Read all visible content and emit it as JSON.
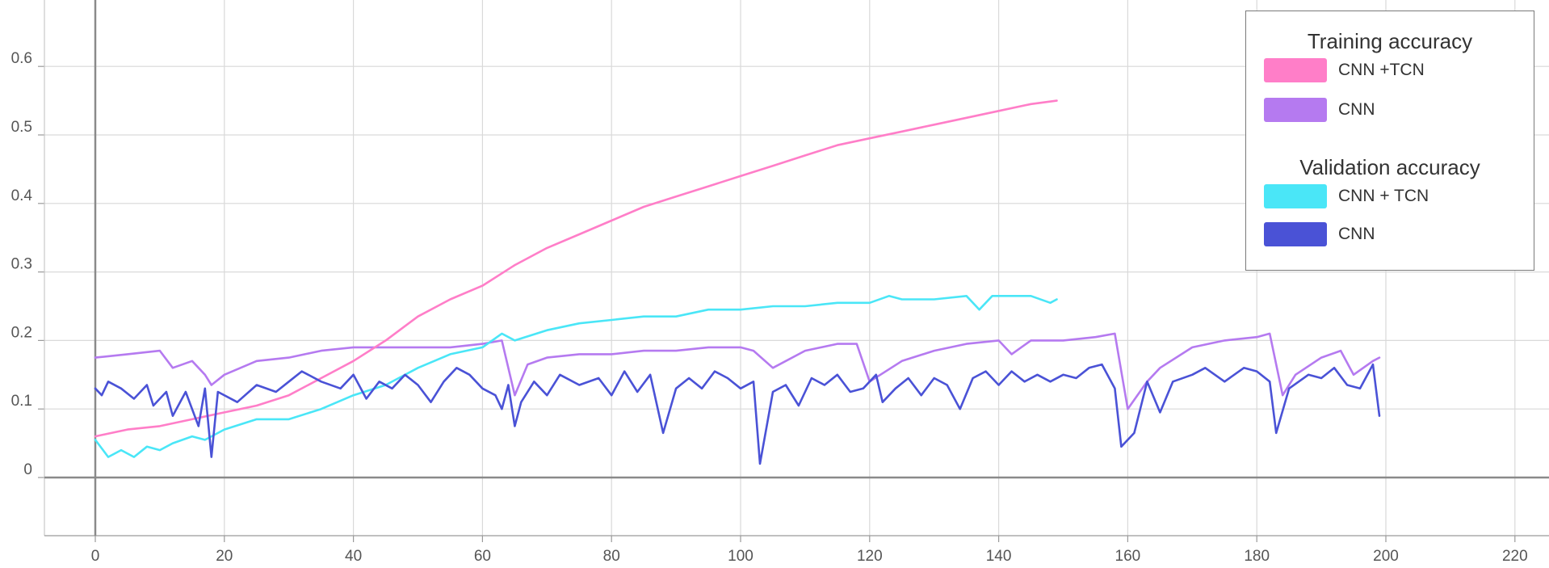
{
  "chart_data": {
    "type": "line",
    "title": "",
    "xlabel": "",
    "ylabel": "",
    "xlim": [
      -8,
      224
    ],
    "ylim": [
      -0.085,
      0.68
    ],
    "x_ticks": [
      0,
      20,
      40,
      60,
      80,
      100,
      120,
      140,
      160,
      180,
      200,
      220
    ],
    "y_ticks": [
      0,
      0.1,
      0.2,
      0.3,
      0.4,
      0.5,
      0.6
    ],
    "x_tick_labels": [
      "0",
      "20",
      "40",
      "60",
      "80",
      "100",
      "120",
      "140",
      "160",
      "180",
      "200",
      "220"
    ],
    "y_tick_labels": [
      "0",
      "0.1",
      "0.2",
      "0.3",
      "0.4",
      "0.5",
      "0.6"
    ],
    "grid": true,
    "legend_position": "top-right",
    "legend_groups": [
      {
        "title": "Training accuracy",
        "items": [
          {
            "label": "CNN +TCN",
            "series_index": 0
          },
          {
            "label": "CNN",
            "series_index": 1
          }
        ]
      },
      {
        "title": "Validation accuracy",
        "items": [
          {
            "label": "CNN + TCN",
            "series_index": 2
          },
          {
            "label": "CNN",
            "series_index": 3
          }
        ]
      }
    ],
    "series": [
      {
        "name": "CNN +TCN",
        "color": "#ff7ec8",
        "points": [
          [
            0,
            0.06
          ],
          [
            5,
            0.07
          ],
          [
            10,
            0.075
          ],
          [
            15,
            0.085
          ],
          [
            20,
            0.095
          ],
          [
            25,
            0.105
          ],
          [
            30,
            0.12
          ],
          [
            35,
            0.145
          ],
          [
            40,
            0.17
          ],
          [
            45,
            0.2
          ],
          [
            50,
            0.235
          ],
          [
            55,
            0.26
          ],
          [
            60,
            0.28
          ],
          [
            65,
            0.31
          ],
          [
            70,
            0.335
          ],
          [
            75,
            0.355
          ],
          [
            80,
            0.375
          ],
          [
            85,
            0.395
          ],
          [
            90,
            0.41
          ],
          [
            95,
            0.425
          ],
          [
            100,
            0.44
          ],
          [
            105,
            0.455
          ],
          [
            110,
            0.47
          ],
          [
            115,
            0.485
          ],
          [
            120,
            0.495
          ],
          [
            125,
            0.505
          ],
          [
            130,
            0.515
          ],
          [
            135,
            0.525
          ],
          [
            140,
            0.535
          ],
          [
            145,
            0.545
          ],
          [
            149,
            0.55
          ]
        ]
      },
      {
        "name": "CNN",
        "color": "#b57af0",
        "points": [
          [
            0,
            0.175
          ],
          [
            5,
            0.18
          ],
          [
            10,
            0.185
          ],
          [
            12,
            0.16
          ],
          [
            15,
            0.17
          ],
          [
            17,
            0.15
          ],
          [
            18,
            0.135
          ],
          [
            20,
            0.15
          ],
          [
            25,
            0.17
          ],
          [
            30,
            0.175
          ],
          [
            35,
            0.185
          ],
          [
            40,
            0.19
          ],
          [
            45,
            0.19
          ],
          [
            50,
            0.19
          ],
          [
            55,
            0.19
          ],
          [
            60,
            0.195
          ],
          [
            63,
            0.2
          ],
          [
            65,
            0.12
          ],
          [
            67,
            0.165
          ],
          [
            70,
            0.175
          ],
          [
            75,
            0.18
          ],
          [
            80,
            0.18
          ],
          [
            85,
            0.185
          ],
          [
            90,
            0.185
          ],
          [
            95,
            0.19
          ],
          [
            100,
            0.19
          ],
          [
            102,
            0.185
          ],
          [
            105,
            0.16
          ],
          [
            110,
            0.185
          ],
          [
            115,
            0.195
          ],
          [
            118,
            0.195
          ],
          [
            120,
            0.14
          ],
          [
            125,
            0.17
          ],
          [
            130,
            0.185
          ],
          [
            135,
            0.195
          ],
          [
            140,
            0.2
          ],
          [
            142,
            0.18
          ],
          [
            145,
            0.2
          ],
          [
            150,
            0.2
          ],
          [
            155,
            0.205
          ],
          [
            158,
            0.21
          ],
          [
            160,
            0.1
          ],
          [
            163,
            0.14
          ],
          [
            165,
            0.16
          ],
          [
            170,
            0.19
          ],
          [
            175,
            0.2
          ],
          [
            180,
            0.205
          ],
          [
            182,
            0.21
          ],
          [
            184,
            0.12
          ],
          [
            186,
            0.15
          ],
          [
            190,
            0.175
          ],
          [
            193,
            0.185
          ],
          [
            195,
            0.15
          ],
          [
            198,
            0.17
          ],
          [
            199,
            0.175
          ]
        ]
      },
      {
        "name": "CNN + TCN",
        "color": "#4ae6f7",
        "points": [
          [
            0,
            0.055
          ],
          [
            2,
            0.03
          ],
          [
            4,
            0.04
          ],
          [
            6,
            0.03
          ],
          [
            8,
            0.045
          ],
          [
            10,
            0.04
          ],
          [
            12,
            0.05
          ],
          [
            15,
            0.06
          ],
          [
            17,
            0.055
          ],
          [
            20,
            0.07
          ],
          [
            25,
            0.085
          ],
          [
            30,
            0.085
          ],
          [
            35,
            0.1
          ],
          [
            40,
            0.12
          ],
          [
            45,
            0.135
          ],
          [
            50,
            0.16
          ],
          [
            55,
            0.18
          ],
          [
            60,
            0.19
          ],
          [
            63,
            0.21
          ],
          [
            65,
            0.2
          ],
          [
            70,
            0.215
          ],
          [
            75,
            0.225
          ],
          [
            80,
            0.23
          ],
          [
            85,
            0.235
          ],
          [
            90,
            0.235
          ],
          [
            95,
            0.245
          ],
          [
            100,
            0.245
          ],
          [
            105,
            0.25
          ],
          [
            110,
            0.25
          ],
          [
            115,
            0.255
          ],
          [
            120,
            0.255
          ],
          [
            123,
            0.265
          ],
          [
            125,
            0.26
          ],
          [
            130,
            0.26
          ],
          [
            135,
            0.265
          ],
          [
            137,
            0.245
          ],
          [
            139,
            0.265
          ],
          [
            145,
            0.265
          ],
          [
            148,
            0.255
          ],
          [
            149,
            0.26
          ]
        ]
      },
      {
        "name": "CNN",
        "color": "#4a52d6",
        "points": [
          [
            0,
            0.13
          ],
          [
            1,
            0.12
          ],
          [
            2,
            0.14
          ],
          [
            4,
            0.13
          ],
          [
            6,
            0.115
          ],
          [
            8,
            0.135
          ],
          [
            9,
            0.105
          ],
          [
            11,
            0.125
          ],
          [
            12,
            0.09
          ],
          [
            14,
            0.125
          ],
          [
            16,
            0.075
          ],
          [
            17,
            0.13
          ],
          [
            18,
            0.03
          ],
          [
            19,
            0.125
          ],
          [
            22,
            0.11
          ],
          [
            25,
            0.135
          ],
          [
            28,
            0.125
          ],
          [
            30,
            0.14
          ],
          [
            32,
            0.155
          ],
          [
            35,
            0.14
          ],
          [
            38,
            0.13
          ],
          [
            40,
            0.15
          ],
          [
            42,
            0.115
          ],
          [
            44,
            0.14
          ],
          [
            46,
            0.13
          ],
          [
            48,
            0.15
          ],
          [
            50,
            0.135
          ],
          [
            52,
            0.11
          ],
          [
            54,
            0.14
          ],
          [
            56,
            0.16
          ],
          [
            58,
            0.15
          ],
          [
            60,
            0.13
          ],
          [
            62,
            0.12
          ],
          [
            63,
            0.1
          ],
          [
            64,
            0.135
          ],
          [
            65,
            0.075
          ],
          [
            66,
            0.11
          ],
          [
            68,
            0.14
          ],
          [
            70,
            0.12
          ],
          [
            72,
            0.15
          ],
          [
            75,
            0.135
          ],
          [
            78,
            0.145
          ],
          [
            80,
            0.12
          ],
          [
            82,
            0.155
          ],
          [
            84,
            0.125
          ],
          [
            86,
            0.15
          ],
          [
            88,
            0.065
          ],
          [
            90,
            0.13
          ],
          [
            92,
            0.145
          ],
          [
            94,
            0.13
          ],
          [
            96,
            0.155
          ],
          [
            98,
            0.145
          ],
          [
            100,
            0.13
          ],
          [
            102,
            0.14
          ],
          [
            103,
            0.02
          ],
          [
            105,
            0.125
          ],
          [
            107,
            0.135
          ],
          [
            109,
            0.105
          ],
          [
            111,
            0.145
          ],
          [
            113,
            0.135
          ],
          [
            115,
            0.15
          ],
          [
            117,
            0.125
          ],
          [
            119,
            0.13
          ],
          [
            121,
            0.15
          ],
          [
            122,
            0.11
          ],
          [
            124,
            0.13
          ],
          [
            126,
            0.145
          ],
          [
            128,
            0.12
          ],
          [
            130,
            0.145
          ],
          [
            132,
            0.135
          ],
          [
            134,
            0.1
          ],
          [
            136,
            0.145
          ],
          [
            138,
            0.155
          ],
          [
            140,
            0.135
          ],
          [
            142,
            0.155
          ],
          [
            144,
            0.14
          ],
          [
            146,
            0.15
          ],
          [
            148,
            0.14
          ],
          [
            150,
            0.15
          ],
          [
            152,
            0.145
          ],
          [
            154,
            0.16
          ],
          [
            156,
            0.165
          ],
          [
            158,
            0.13
          ],
          [
            159,
            0.045
          ],
          [
            161,
            0.065
          ],
          [
            163,
            0.14
          ],
          [
            165,
            0.095
          ],
          [
            167,
            0.14
          ],
          [
            170,
            0.15
          ],
          [
            172,
            0.16
          ],
          [
            175,
            0.14
          ],
          [
            178,
            0.16
          ],
          [
            180,
            0.155
          ],
          [
            182,
            0.14
          ],
          [
            183,
            0.065
          ],
          [
            185,
            0.13
          ],
          [
            188,
            0.15
          ],
          [
            190,
            0.145
          ],
          [
            192,
            0.16
          ],
          [
            194,
            0.135
          ],
          [
            196,
            0.13
          ],
          [
            198,
            0.165
          ],
          [
            199,
            0.09
          ]
        ]
      }
    ]
  }
}
